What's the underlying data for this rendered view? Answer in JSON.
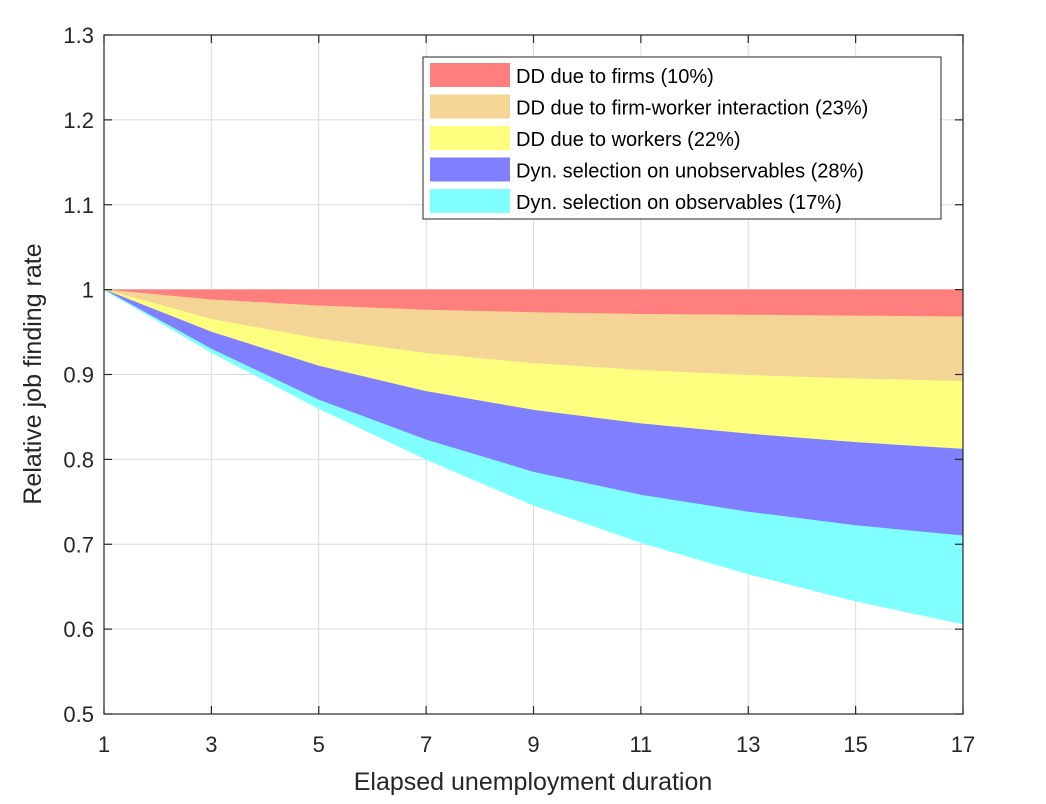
{
  "chart_data": {
    "type": "area",
    "xlabel": "Elapsed unemployment duration",
    "ylabel": "Relative job finding rate",
    "xlim": [
      1,
      17
    ],
    "ylim": [
      0.5,
      1.3
    ],
    "xticks": [
      1,
      3,
      5,
      7,
      9,
      11,
      13,
      15,
      17
    ],
    "yticks": [
      0.5,
      0.6,
      0.7,
      0.8,
      0.9,
      1,
      1.1,
      1.2,
      1.3
    ],
    "ytick_labels": [
      "0.5",
      "0.6",
      "0.7",
      "0.8",
      "0.9",
      "1",
      "1.1",
      "1.2",
      "1.3"
    ],
    "grid": true,
    "legend_position": "top-right",
    "x": [
      1,
      3,
      5,
      7,
      9,
      11,
      13,
      15,
      17
    ],
    "top_line": [
      1,
      1,
      1,
      1,
      1,
      1,
      1,
      1,
      1
    ],
    "series": [
      {
        "name": "DD due to firms (10%)",
        "color": "#ff7f7f",
        "lower": [
          1,
          0.988,
          0.981,
          0.976,
          0.973,
          0.971,
          0.97,
          0.969,
          0.968
        ]
      },
      {
        "name": "DD due to firm-worker interaction (23%)",
        "color": "#f4d595",
        "lower": [
          1,
          0.965,
          0.942,
          0.925,
          0.913,
          0.905,
          0.899,
          0.895,
          0.892
        ]
      },
      {
        "name": "DD due to workers (22%)",
        "color": "#ffff7f",
        "lower": [
          1,
          0.95,
          0.91,
          0.88,
          0.858,
          0.842,
          0.83,
          0.82,
          0.812
        ]
      },
      {
        "name": "Dyn. selection on unobservables (28%)",
        "color": "#7f7fff",
        "lower": [
          1,
          0.93,
          0.87,
          0.823,
          0.785,
          0.758,
          0.738,
          0.722,
          0.71
        ]
      },
      {
        "name": "Dyn. selection on observables (17%)",
        "color": "#7fffff",
        "lower": [
          1,
          0.926,
          0.86,
          0.8,
          0.746,
          0.702,
          0.665,
          0.633,
          0.606
        ]
      }
    ]
  }
}
